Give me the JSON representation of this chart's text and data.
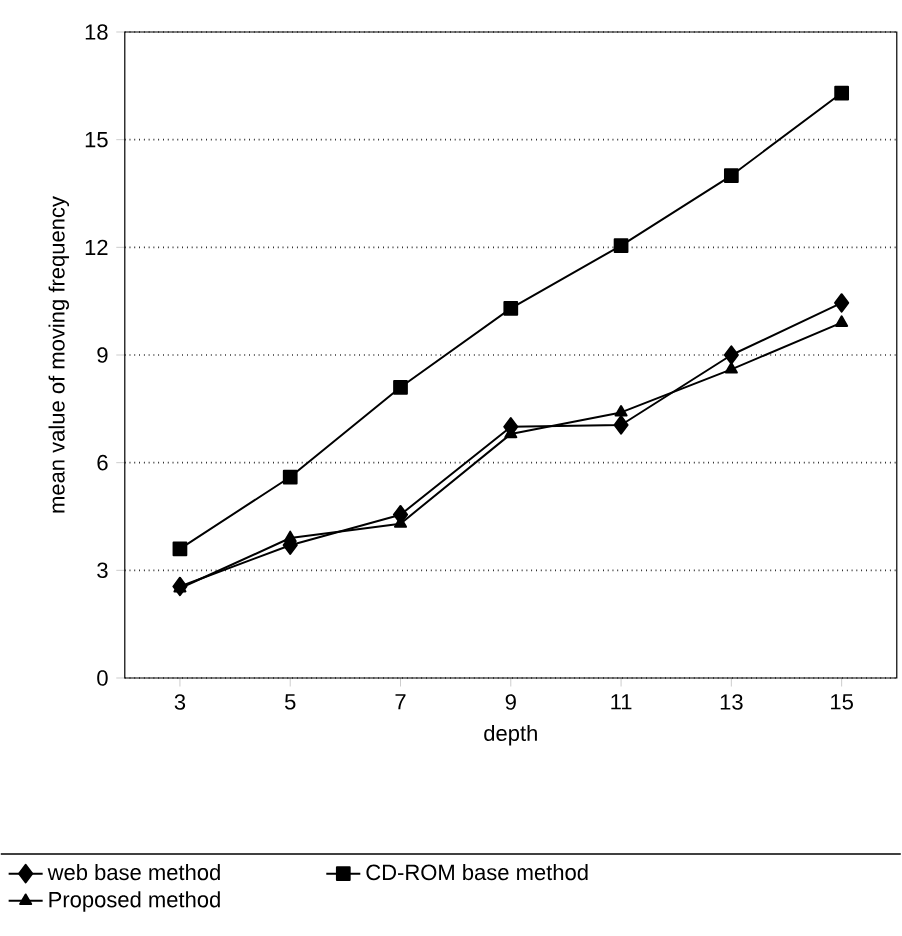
{
  "chart_data": {
    "type": "line",
    "xlabel": "depth",
    "ylabel": "mean value of moving frequency",
    "categories": [
      "3",
      "5",
      "7",
      "9",
      "11",
      "13",
      "15"
    ],
    "series": [
      {
        "name": "web base method",
        "color": "#000000",
        "marker": "diamond",
        "values": [
          2.55,
          3.7,
          4.55,
          7.0,
          7.05,
          9.0,
          10.45
        ]
      },
      {
        "name": "CD-ROM base method",
        "color": "#000000",
        "marker": "square",
        "values": [
          3.6,
          5.6,
          8.1,
          10.3,
          12.05,
          14.0,
          16.3
        ]
      },
      {
        "name": "Proposed method",
        "color": "#000000",
        "marker": "triangle",
        "values": [
          2.5,
          3.9,
          4.3,
          6.8,
          7.4,
          8.6,
          9.9
        ]
      }
    ],
    "ylim": [
      0,
      18
    ],
    "yticks": [
      0,
      3,
      6,
      9,
      12,
      15,
      18
    ],
    "grid": "y",
    "legend": "bottom",
    "line_style": "solid"
  }
}
